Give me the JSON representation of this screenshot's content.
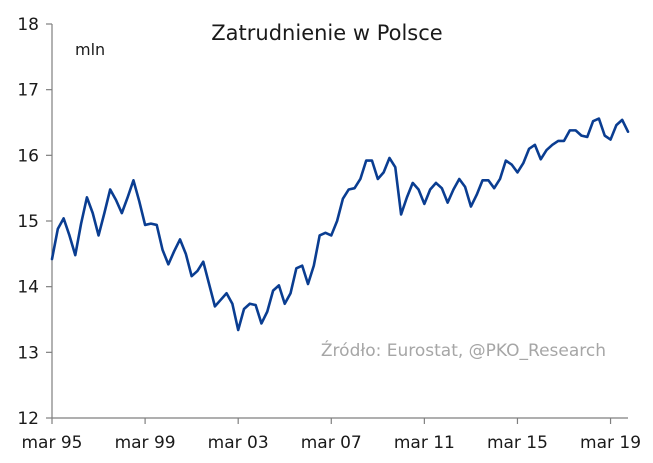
{
  "chart_data": {
    "type": "line",
    "title": "Zatrudnienie w Polsce",
    "ylabel": "mln",
    "xlabel": "",
    "source": "Źródło: Eurostat, @PKO_Research",
    "ylim": [
      12,
      18
    ],
    "yticks": [
      12,
      13,
      14,
      15,
      16,
      17,
      18
    ],
    "xlim": [
      0,
      99
    ],
    "xticks": [
      {
        "label": "mar 95",
        "index": 0
      },
      {
        "label": "mar 99",
        "index": 16
      },
      {
        "label": "mar 03",
        "index": 32
      },
      {
        "label": "mar 07",
        "index": 48
      },
      {
        "label": "mar 11",
        "index": 64
      },
      {
        "label": "mar 15",
        "index": 80
      },
      {
        "label": "mar 19",
        "index": 96
      }
    ],
    "grid": false,
    "series": [
      {
        "name": "Zatrudnienie",
        "color": "#0a3d91",
        "frequency": "quarterly",
        "start": "mar 95",
        "values": [
          14.42,
          14.88,
          15.04,
          14.78,
          14.48,
          14.96,
          15.36,
          15.12,
          14.78,
          15.12,
          15.48,
          15.32,
          15.12,
          15.36,
          15.62,
          15.3,
          14.94,
          14.96,
          14.94,
          14.56,
          14.34,
          14.54,
          14.72,
          14.5,
          14.16,
          14.24,
          14.38,
          14.04,
          13.7,
          13.8,
          13.9,
          13.74,
          13.34,
          13.66,
          13.74,
          13.72,
          13.44,
          13.62,
          13.94,
          14.02,
          13.74,
          13.9,
          14.28,
          14.32,
          14.04,
          14.32,
          14.78,
          14.82,
          14.78,
          15.0,
          15.34,
          15.48,
          15.5,
          15.64,
          15.92,
          15.92,
          15.64,
          15.74,
          15.96,
          15.82,
          15.1,
          15.36,
          15.58,
          15.48,
          15.26,
          15.48,
          15.58,
          15.5,
          15.28,
          15.48,
          15.64,
          15.52,
          15.22,
          15.4,
          15.62,
          15.62,
          15.5,
          15.64,
          15.92,
          15.86,
          15.74,
          15.88,
          16.1,
          16.16,
          15.94,
          16.08,
          16.16,
          16.22,
          16.22,
          16.38,
          16.38,
          16.3,
          16.28,
          16.52,
          16.56,
          16.3,
          16.24,
          16.46,
          16.54,
          16.36
        ]
      }
    ]
  }
}
